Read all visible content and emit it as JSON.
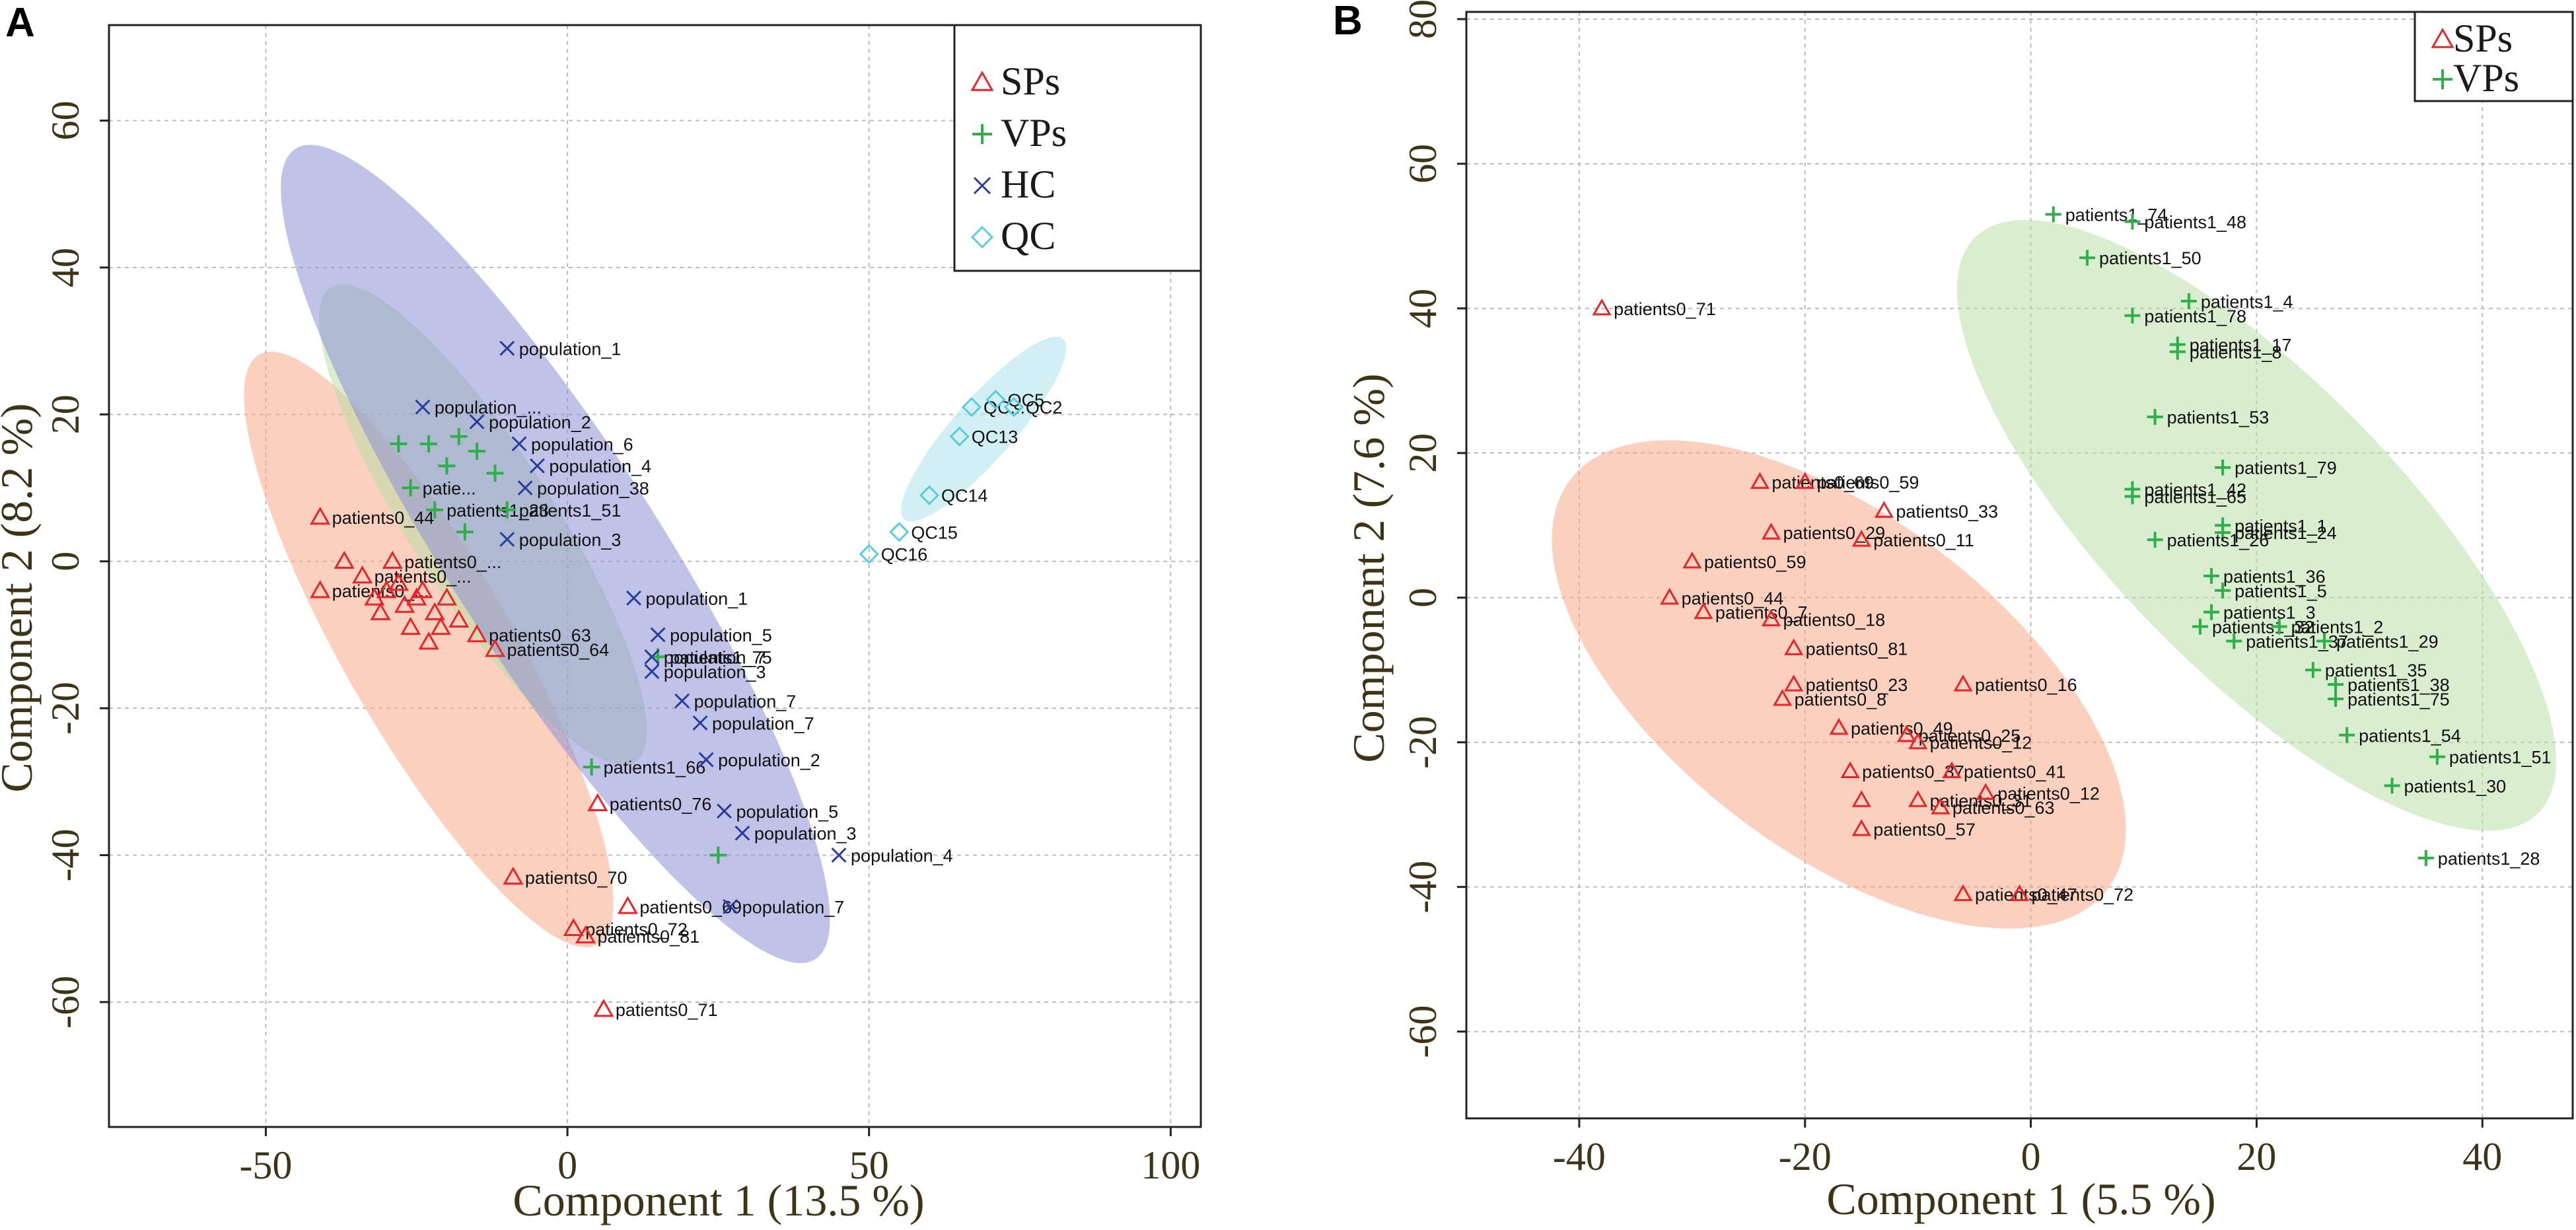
{
  "chart_data": [
    {
      "type": "scatter",
      "panel_label": "A",
      "xlabel": "Component 1 (13.5 %)",
      "ylabel": "Component 2 (8.2 %)",
      "xlim": [
        -76,
        105
      ],
      "ylim": [
        -77,
        73
      ],
      "xticks": [
        -50,
        0,
        50,
        100
      ],
      "yticks": [
        -60,
        -40,
        -20,
        0,
        20,
        40,
        60
      ],
      "xtick_labels": [
        "-50",
        "0",
        "50",
        "100"
      ],
      "ytick_labels": [
        "-60",
        "-40",
        "-20",
        "0",
        "20",
        "40",
        "60"
      ],
      "grid": true,
      "legend_position": "top-right",
      "legend": [
        {
          "name": "SPs",
          "symbol": "triangle",
          "color": "#e8262a"
        },
        {
          "name": "VPs",
          "symbol": "plus",
          "color": "#2fae4a"
        },
        {
          "name": "HC",
          "symbol": "cross",
          "color": "#2b3d9c"
        },
        {
          "name": "QC",
          "symbol": "diamond",
          "color": "#5ccbdd"
        }
      ],
      "ellipses": [
        {
          "group": "SPs",
          "center": [
            -23,
            -12
          ],
          "axes": [
            49,
            13
          ],
          "angle_deg": -55,
          "fill": "#f7a988",
          "opacity": 0.55
        },
        {
          "group": "VPs",
          "center": [
            -14,
            5
          ],
          "axes": [
            41,
            11
          ],
          "angle_deg": -52,
          "fill": "#b9dfa7",
          "opacity": 0.55
        },
        {
          "group": "HC",
          "center": [
            -2,
            1
          ],
          "axes": [
            70,
            16
          ],
          "angle_deg": -52,
          "fill": "#8d8fd6",
          "opacity": 0.55
        },
        {
          "group": "QC",
          "center": [
            69,
            18
          ],
          "axes": [
            18,
            4.5
          ],
          "angle_deg": 43,
          "fill": "#bfe8ef",
          "opacity": 0.7
        }
      ],
      "series": [
        {
          "name": "SPs",
          "points": [
            {
              "x": -41,
              "y": 6,
              "label": "patients0_44"
            },
            {
              "x": -41,
              "y": -4,
              "label": "patients0_..."
            },
            {
              "x": -37,
              "y": 0,
              "label": ""
            },
            {
              "x": -34,
              "y": -2,
              "label": "patients0_..."
            },
            {
              "x": -32,
              "y": -5,
              "label": ""
            },
            {
              "x": -31,
              "y": -7,
              "label": ""
            },
            {
              "x": -30,
              "y": -4,
              "label": ""
            },
            {
              "x": -29,
              "y": 0,
              "label": "patients0_..."
            },
            {
              "x": -28,
              "y": -3,
              "label": ""
            },
            {
              "x": -27,
              "y": -6,
              "label": ""
            },
            {
              "x": -26,
              "y": -9,
              "label": ""
            },
            {
              "x": -25,
              "y": -5,
              "label": ""
            },
            {
              "x": -24,
              "y": -4,
              "label": ""
            },
            {
              "x": -23,
              "y": -11,
              "label": ""
            },
            {
              "x": -22,
              "y": -7,
              "label": ""
            },
            {
              "x": -21,
              "y": -9,
              "label": ""
            },
            {
              "x": -20,
              "y": -5,
              "label": ""
            },
            {
              "x": -18,
              "y": -8,
              "label": ""
            },
            {
              "x": -15,
              "y": -10,
              "label": "patients0_63"
            },
            {
              "x": -12,
              "y": -12,
              "label": "patients0_64"
            },
            {
              "x": 5,
              "y": -33,
              "label": "patients0_76"
            },
            {
              "x": -9,
              "y": -43,
              "label": "patients0_70"
            },
            {
              "x": 10,
              "y": -47,
              "label": "patients0_69"
            },
            {
              "x": 1,
              "y": -50,
              "label": "patients0_72"
            },
            {
              "x": 3,
              "y": -51,
              "label": "patients0_81"
            },
            {
              "x": 6,
              "y": -61,
              "label": "patients0_71"
            }
          ]
        },
        {
          "name": "VPs",
          "points": [
            {
              "x": -28,
              "y": 16,
              "label": ""
            },
            {
              "x": -26,
              "y": 10,
              "label": "patie..."
            },
            {
              "x": -23,
              "y": 16,
              "label": ""
            },
            {
              "x": -20,
              "y": 13,
              "label": ""
            },
            {
              "x": -18,
              "y": 17,
              "label": ""
            },
            {
              "x": -15,
              "y": 15,
              "label": ""
            },
            {
              "x": -12,
              "y": 12,
              "label": ""
            },
            {
              "x": -22,
              "y": 7,
              "label": "patients1_23"
            },
            {
              "x": -10,
              "y": 7,
              "label": "patients1_51"
            },
            {
              "x": -17,
              "y": 4,
              "label": ""
            },
            {
              "x": 15,
              "y": -13,
              "label": "patients1_75"
            },
            {
              "x": 4,
              "y": -28,
              "label": "patients1_66"
            },
            {
              "x": 25,
              "y": -40,
              "label": ""
            }
          ]
        },
        {
          "name": "HC",
          "points": [
            {
              "x": -24,
              "y": 21,
              "label": "population_..."
            },
            {
              "x": -10,
              "y": 29,
              "label": "population_1"
            },
            {
              "x": -15,
              "y": 19,
              "label": "population_2"
            },
            {
              "x": -8,
              "y": 16,
              "label": "population_6"
            },
            {
              "x": -5,
              "y": 13,
              "label": "population_4"
            },
            {
              "x": -7,
              "y": 10,
              "label": "population_38"
            },
            {
              "x": -10,
              "y": 3,
              "label": "population_3"
            },
            {
              "x": 11,
              "y": -5,
              "label": "population_1"
            },
            {
              "x": 15,
              "y": -10,
              "label": "population_5"
            },
            {
              "x": 14,
              "y": -13,
              "label": "population_7"
            },
            {
              "x": 14,
              "y": -15,
              "label": "population_3"
            },
            {
              "x": 19,
              "y": -19,
              "label": "population_7"
            },
            {
              "x": 22,
              "y": -22,
              "label": "population_7"
            },
            {
              "x": 23,
              "y": -27,
              "label": "population_2"
            },
            {
              "x": 26,
              "y": -34,
              "label": "population_5"
            },
            {
              "x": 29,
              "y": -37,
              "label": "population_3"
            },
            {
              "x": 45,
              "y": -40,
              "label": "population_4"
            },
            {
              "x": 27,
              "y": -47,
              "label": "population_7"
            }
          ]
        },
        {
          "name": "QC",
          "points": [
            {
              "x": 67,
              "y": 21,
              "label": "QC..."
            },
            {
              "x": 71,
              "y": 22,
              "label": "QC5"
            },
            {
              "x": 74,
              "y": 21,
              "label": "QC2"
            },
            {
              "x": 65,
              "y": 17,
              "label": "QC13"
            },
            {
              "x": 60,
              "y": 9,
              "label": "QC14"
            },
            {
              "x": 55,
              "y": 4,
              "label": "QC15"
            },
            {
              "x": 50,
              "y": 1,
              "label": "QC16"
            }
          ]
        }
      ]
    },
    {
      "type": "scatter",
      "panel_label": "B",
      "xlabel": "Component 1 (5.5 %)",
      "ylabel": "Component 2 (7.6 %)",
      "xlim": [
        -50,
        48
      ],
      "ylim": [
        -72,
        81
      ],
      "xticks": [
        -40,
        -20,
        0,
        20,
        40
      ],
      "yticks": [
        -60,
        -40,
        -20,
        0,
        20,
        40,
        60,
        80
      ],
      "xtick_labels": [
        "-40",
        "-20",
        "0",
        "20",
        "40"
      ],
      "ytick_labels": [
        "-60",
        "-40",
        "-20",
        "0",
        "20",
        "40",
        "60",
        "80"
      ],
      "grid": true,
      "legend_position": "top-right",
      "legend": [
        {
          "name": "SPs",
          "symbol": "triangle",
          "color": "#e8262a"
        },
        {
          "name": "VPs",
          "symbol": "plus",
          "color": "#2fae4a"
        }
      ],
      "ellipses": [
        {
          "group": "SPs",
          "center": [
            -17,
            -12
          ],
          "axes": [
            37,
            17
          ],
          "angle_deg": -50,
          "fill": "#f7a988",
          "opacity": 0.55
        },
        {
          "group": "VPs",
          "center": [
            20,
            10
          ],
          "axes": [
            47,
            14
          ],
          "angle_deg": -58,
          "fill": "#b9dfa7",
          "opacity": 0.55
        }
      ],
      "series": [
        {
          "name": "SPs",
          "points": [
            {
              "x": -38,
              "y": 40,
              "label": "patients0_71"
            },
            {
              "x": -24,
              "y": 16,
              "label": "patients0_69"
            },
            {
              "x": -20,
              "y": 16,
              "label": "patients0_59"
            },
            {
              "x": -13,
              "y": 12,
              "label": "patients0_33"
            },
            {
              "x": -23,
              "y": 9,
              "label": "patients0_29"
            },
            {
              "x": -15,
              "y": 8,
              "label": "patients0_11"
            },
            {
              "x": -30,
              "y": 5,
              "label": "patients0_59"
            },
            {
              "x": -32,
              "y": 0,
              "label": "patients0_44"
            },
            {
              "x": -29,
              "y": -2,
              "label": "patients0_7"
            },
            {
              "x": -23,
              "y": -3,
              "label": "patients0_18"
            },
            {
              "x": -21,
              "y": -7,
              "label": "patients0_81"
            },
            {
              "x": -21,
              "y": -12,
              "label": "patients0_23"
            },
            {
              "x": -22,
              "y": -14,
              "label": "patients0_8"
            },
            {
              "x": -6,
              "y": -12,
              "label": "patients0_16"
            },
            {
              "x": -17,
              "y": -18,
              "label": "patients0_49"
            },
            {
              "x": -11,
              "y": -19,
              "label": "patients0_25"
            },
            {
              "x": -10,
              "y": -20,
              "label": "patients0_12"
            },
            {
              "x": -16,
              "y": -24,
              "label": "patients0_37"
            },
            {
              "x": -7,
              "y": -24,
              "label": "patients0_41"
            },
            {
              "x": -10,
              "y": -28,
              "label": "patients0_31"
            },
            {
              "x": -4,
              "y": -27,
              "label": "patients0_12"
            },
            {
              "x": -15,
              "y": -28,
              "label": ""
            },
            {
              "x": -8,
              "y": -29,
              "label": "patients0_63"
            },
            {
              "x": -15,
              "y": -32,
              "label": "patients0_57"
            },
            {
              "x": -6,
              "y": -41,
              "label": "patients0_47"
            },
            {
              "x": -1,
              "y": -41,
              "label": "patients0_72"
            }
          ]
        },
        {
          "name": "VPs",
          "points": [
            {
              "x": 2,
              "y": 53,
              "label": "patients1_74"
            },
            {
              "x": 9,
              "y": 52,
              "label": "patients1_48"
            },
            {
              "x": 5,
              "y": 47,
              "label": "patients1_50"
            },
            {
              "x": 14,
              "y": 41,
              "label": "patients1_4"
            },
            {
              "x": 9,
              "y": 39,
              "label": "patients1_78"
            },
            {
              "x": 13,
              "y": 35,
              "label": "patients1_17"
            },
            {
              "x": 13,
              "y": 34,
              "label": "patients1_8"
            },
            {
              "x": 11,
              "y": 25,
              "label": "patients1_53"
            },
            {
              "x": 17,
              "y": 18,
              "label": "patients1_79"
            },
            {
              "x": 9,
              "y": 15,
              "label": "patients1_42"
            },
            {
              "x": 9,
              "y": 14,
              "label": "patients1_65"
            },
            {
              "x": 17,
              "y": 10,
              "label": "patients1_1"
            },
            {
              "x": 17,
              "y": 9,
              "label": "patients1_24"
            },
            {
              "x": 11,
              "y": 8,
              "label": "patients1_26"
            },
            {
              "x": 16,
              "y": 3,
              "label": "patients1_36"
            },
            {
              "x": 17,
              "y": 1,
              "label": "patients1_5"
            },
            {
              "x": 16,
              "y": -2,
              "label": "patients1_3"
            },
            {
              "x": 15,
              "y": -4,
              "label": "patients1_32"
            },
            {
              "x": 22,
              "y": -4,
              "label": "patients1_2"
            },
            {
              "x": 18,
              "y": -6,
              "label": "patients1_37"
            },
            {
              "x": 26,
              "y": -6,
              "label": "patients1_29"
            },
            {
              "x": 25,
              "y": -10,
              "label": "patients1_35"
            },
            {
              "x": 27,
              "y": -12,
              "label": "patients1_38"
            },
            {
              "x": 27,
              "y": -14,
              "label": "patients1_75"
            },
            {
              "x": 28,
              "y": -19,
              "label": "patients1_54"
            },
            {
              "x": 36,
              "y": -22,
              "label": "patients1_51"
            },
            {
              "x": 32,
              "y": -26,
              "label": "patients1_30"
            },
            {
              "x": 35,
              "y": -36,
              "label": "patients1_28"
            }
          ]
        }
      ]
    }
  ]
}
